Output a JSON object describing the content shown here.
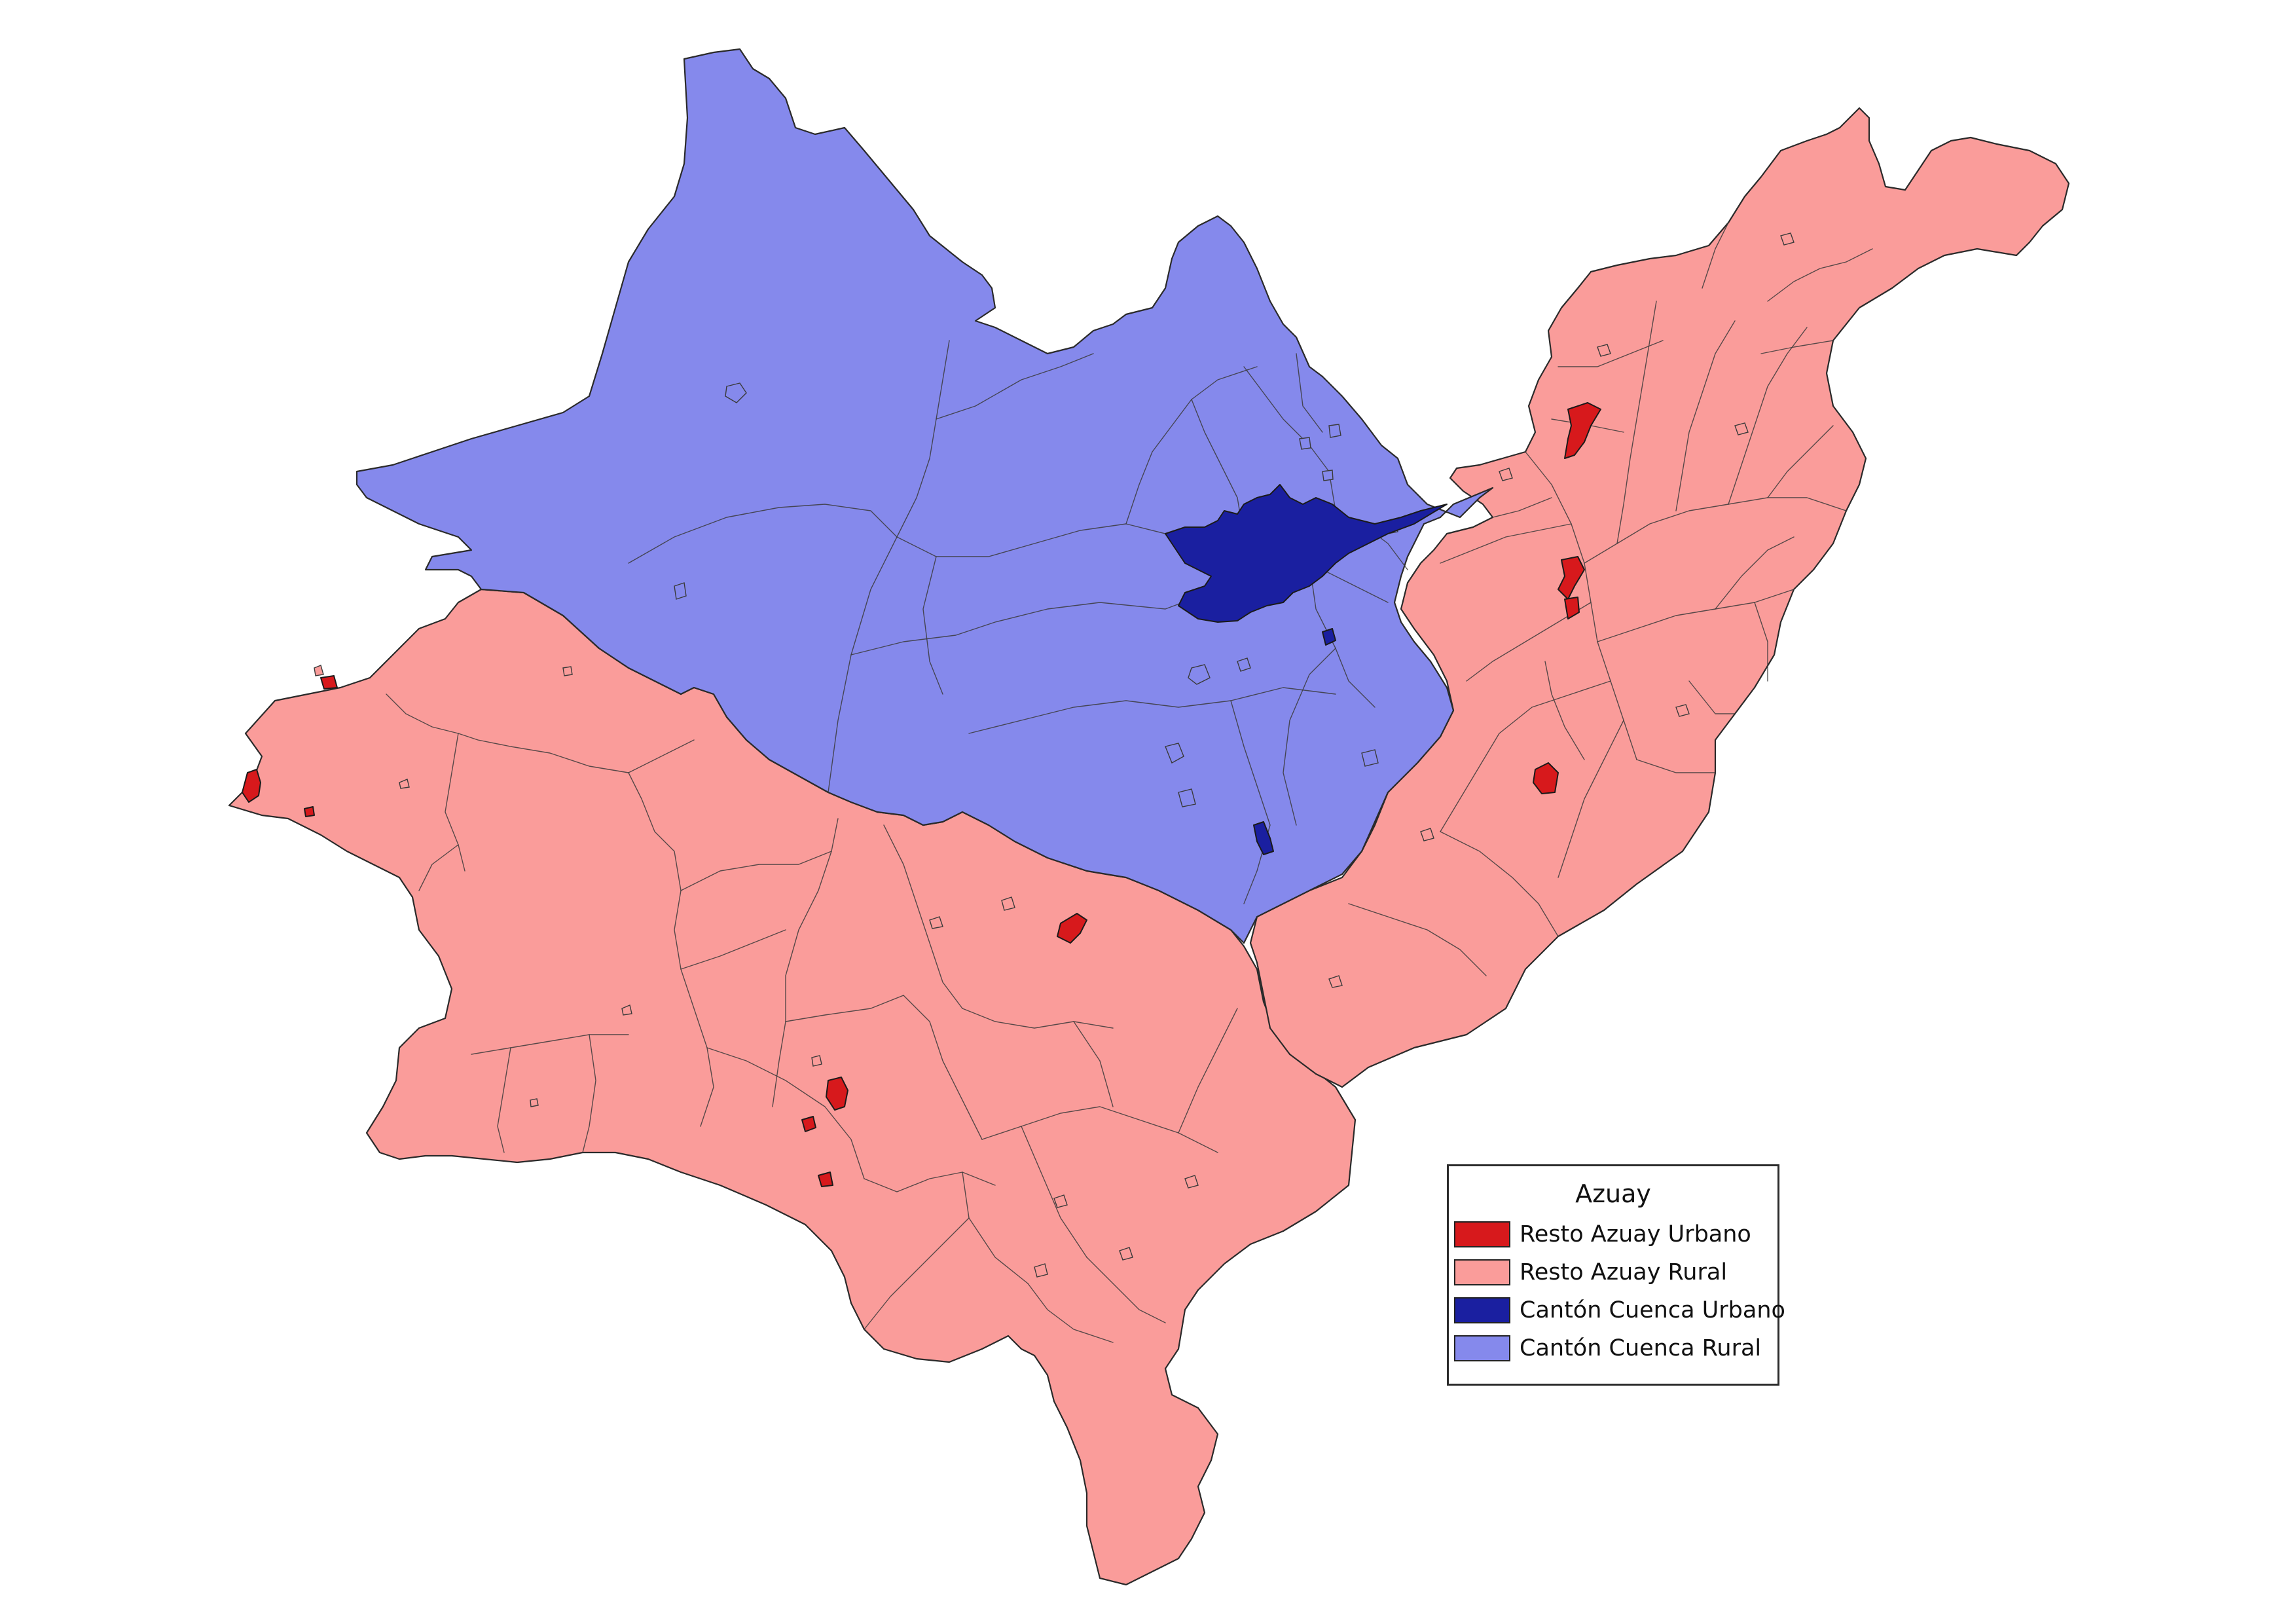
{
  "map": {
    "colors": {
      "resto_urbano": "#d7191c",
      "resto_rural": "#fa9c9a",
      "cuenca_urbano": "#1a1fa0",
      "cuenca_rural": "#8589ec",
      "border": "#2a2a2a"
    }
  },
  "legend": {
    "title": "Azuay",
    "items": [
      {
        "label": "Resto Azuay Urbano",
        "color": "#d7191c"
      },
      {
        "label": "Resto Azuay Rural",
        "color": "#fa9c9a"
      },
      {
        "label": "Cantón Cuenca Urbano",
        "color": "#1a1fa0"
      },
      {
        "label": "Cantón Cuenca Rural",
        "color": "#8589ec"
      }
    ]
  }
}
